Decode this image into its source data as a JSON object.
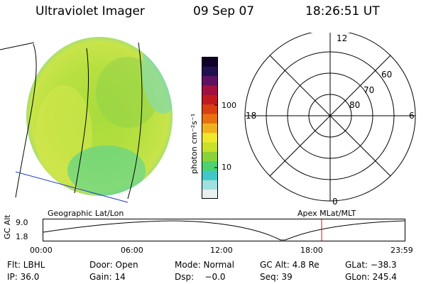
{
  "header": {
    "title": "Ultraviolet Imager",
    "date": "09 Sep 07",
    "time": "18:26:51 UT"
  },
  "earth_image": {
    "label": "Geographic Lat/Lon",
    "icon": "uv-earth-disk-image"
  },
  "colorbar": {
    "unit_label": "photon cm⁻²s⁻¹",
    "ticks": [
      "100",
      "10"
    ],
    "colors": [
      "#e8f0f0",
      "#a0e0e0",
      "#40c8c8",
      "#4cd270",
      "#8ad23a",
      "#c8e02a",
      "#f0e82a",
      "#f0b020",
      "#e87010",
      "#d84010",
      "#c01a20",
      "#a01040",
      "#601060",
      "#201050",
      "#100028"
    ]
  },
  "polar_plot": {
    "label": "Apex MLat/MLT",
    "mlt_labels": {
      "top": "12",
      "left": "18",
      "right": "6",
      "bottom": "0"
    },
    "lat_labels": [
      "60",
      "70",
      "80"
    ]
  },
  "orbit_plot": {
    "ylabel": "GC Alt",
    "yticks": [
      "9.0",
      "1.8"
    ],
    "xticks": [
      "00:00",
      "06:00",
      "12:00",
      "18:00",
      "23:59"
    ],
    "marker_color": "#ff0000"
  },
  "info": {
    "filter": "Flt: LBHL",
    "door": "Door: Open",
    "mode": "Mode: Normal",
    "gc_alt": "GC Alt: 4.8 Re",
    "glat": "GLat: −38.3",
    "ip": "IP: 36.0",
    "gain": "Gain: 14",
    "dsp": "Dsp:    −0.0",
    "seq": "Seq: 39",
    "glon": "GLon: 245.4"
  }
}
